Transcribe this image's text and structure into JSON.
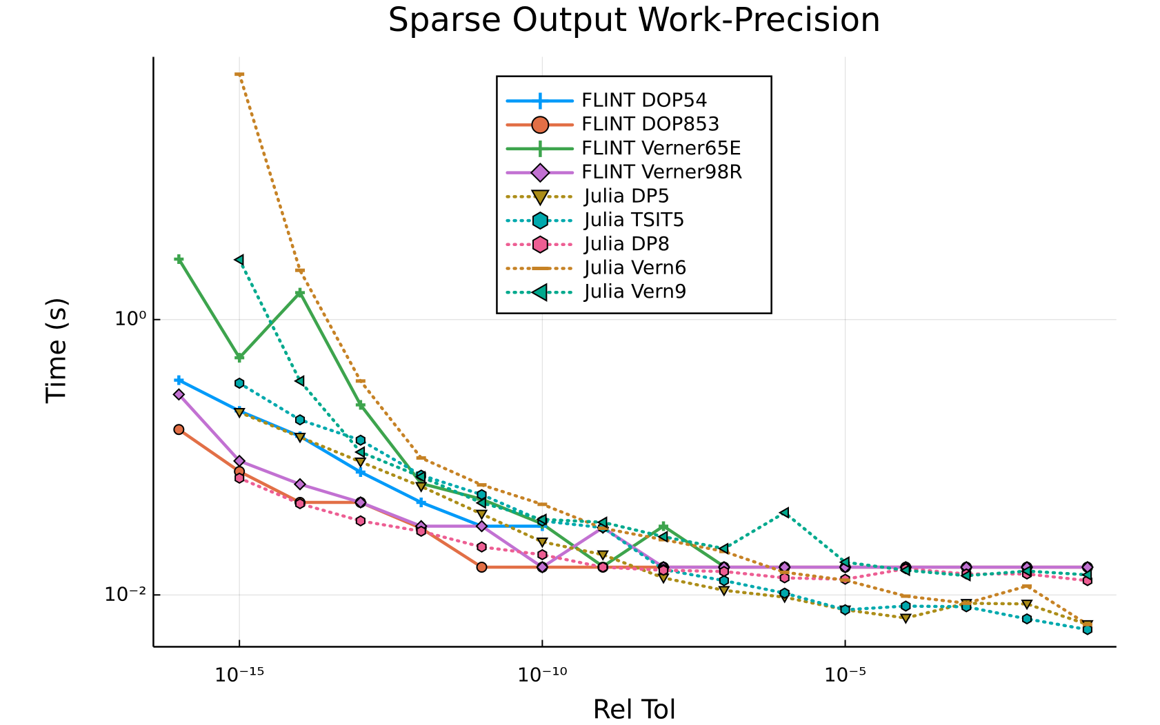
{
  "chart_data": {
    "type": "line",
    "title": "Sparse Output Work-Precision",
    "x_label": "Rel Tol",
    "y_label": "Time (s)",
    "xscale": "log",
    "yscale": "log",
    "grid": true,
    "legend": "top",
    "xlim": [
      3.8e-17,
      0.3
    ],
    "ylim": [
      0.0042,
      81
    ],
    "xticks": [
      {
        "value": 1e-15,
        "label": "10⁻¹⁵"
      },
      {
        "value": 1e-10,
        "label": "10⁻¹⁰"
      },
      {
        "value": 1e-05,
        "label": "10⁻⁵"
      }
    ],
    "yticks": [
      {
        "value": 0.01,
        "label": "10⁻²"
      },
      {
        "value": 1,
        "label": "10⁰"
      }
    ],
    "x": [
      1e-16,
      1e-15,
      1e-14,
      1e-13,
      1e-12,
      1e-11,
      1e-10,
      1e-09,
      1e-08,
      1e-07,
      1e-06,
      1e-05,
      0.0001,
      0.001,
      0.01,
      0.1
    ],
    "series": [
      {
        "name": "FLINT DOP54",
        "color": "#009af9",
        "style": "solid",
        "marker": "cross",
        "values": [
          0.363,
          0.217,
          0.142,
          0.078,
          0.047,
          0.0316,
          0.0316,
          null,
          null,
          null,
          null,
          null,
          null,
          null,
          null,
          null
        ]
      },
      {
        "name": "FLINT DOP853",
        "color": "#e26f46",
        "style": "solid",
        "marker": "circle",
        "values": [
          0.159,
          0.0788,
          0.047,
          0.047,
          0.0305,
          0.0159,
          0.0159,
          0.0159,
          0.0159,
          0.0159,
          0.0159,
          0.0159,
          0.0159,
          0.0159,
          0.0159,
          0.0159
        ]
      },
      {
        "name": "FLINT Verner65E",
        "color": "#3da44d",
        "style": "solid",
        "marker": "cross",
        "values": [
          2.75,
          0.528,
          1.57,
          0.24,
          0.0645,
          0.0496,
          0.0328,
          0.0161,
          0.0316,
          0.0161,
          null,
          null,
          null,
          null,
          null,
          null
        ]
      },
      {
        "name": "FLINT Verner98R",
        "color": "#c271d2",
        "style": "solid",
        "marker": "diamond",
        "values": [
          0.286,
          0.094,
          0.0637,
          0.047,
          0.0316,
          0.0316,
          0.0159,
          0.0308,
          0.0159,
          0.0159,
          0.0159,
          0.0159,
          0.0159,
          0.0159,
          0.0159,
          0.0159
        ]
      },
      {
        "name": "Julia DP5",
        "color": "#ac8d18",
        "style": "dot",
        "marker": "tri-down",
        "values": [
          null,
          0.212,
          0.14,
          0.0927,
          0.0614,
          0.0387,
          0.0243,
          0.0196,
          0.0133,
          0.0108,
          0.00963,
          0.0078,
          0.0068,
          0.0087,
          0.0086,
          0.0061
        ]
      },
      {
        "name": "Julia TSIT5",
        "color": "#00a9ad",
        "style": "dot",
        "marker": "hexagon",
        "values": [
          null,
          0.345,
          0.187,
          0.133,
          0.0741,
          0.0535,
          0.0345,
          0.0308,
          0.0153,
          0.0127,
          0.0103,
          0.0078,
          0.0083,
          0.0082,
          0.0067,
          0.0056
        ]
      },
      {
        "name": "Julia DP8",
        "color": "#ed5e93",
        "style": "dot",
        "marker": "hexagon",
        "values": [
          null,
          0.0705,
          0.046,
          0.0345,
          0.029,
          0.0223,
          0.0196,
          0.0159,
          0.0151,
          0.0148,
          0.0133,
          0.013,
          0.0155,
          0.0142,
          0.0142,
          0.0127
        ]
      },
      {
        "name": "Julia Vern6",
        "color": "#c68225",
        "style": "dot",
        "marker": "hline",
        "values": [
          null,
          60.6,
          2.28,
          0.358,
          0.0988,
          0.063,
          0.0455,
          0.0305,
          0.0252,
          0.0207,
          0.0146,
          0.0128,
          0.0098,
          0.0087,
          0.0116,
          0.0061
        ]
      },
      {
        "name": "Julia Vern9",
        "color": "#00a98d",
        "style": "dot",
        "marker": "tri-left",
        "values": [
          null,
          2.72,
          0.358,
          0.109,
          0.0722,
          0.0466,
          0.0354,
          0.0337,
          0.0265,
          0.0217,
          0.0396,
          0.0173,
          0.0151,
          0.0138,
          0.0149,
          0.014
        ]
      }
    ]
  }
}
